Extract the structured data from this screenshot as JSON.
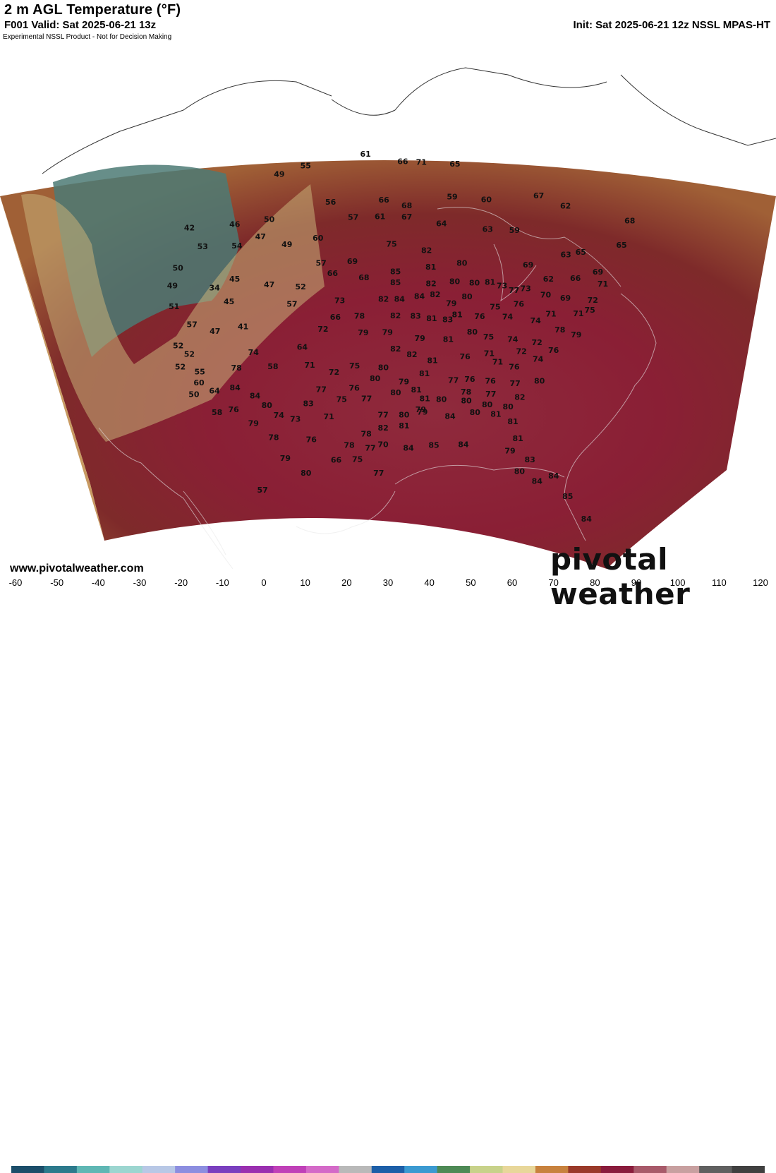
{
  "header": {
    "title": "2 m AGL Temperature (°F)",
    "valid": "F001 Valid: Sat 2025-06-21 13z",
    "init": "Init: Sat 2025-06-21 12z NSSL MPAS-HT",
    "disclaimer": "Experimental NSSL Product - Not for Decision Making"
  },
  "footer": {
    "website": "www.pivotalweather.com",
    "logo": "pivotal weather"
  },
  "colorbar": {
    "ticks": [
      "-60",
      "-50",
      "-40",
      "-30",
      "-20",
      "-10",
      "0",
      "10",
      "20",
      "30",
      "40",
      "50",
      "60",
      "70",
      "80",
      "90",
      "100",
      "110",
      "120"
    ],
    "colors": [
      "#1c4e6a",
      "#2c7a8c",
      "#5fb7b4",
      "#9cd6d0",
      "#b8c8e6",
      "#8c8ee0",
      "#7a3fbf",
      "#9a2fb0",
      "#c040b8",
      "#d46ac8",
      "#b9b9b9",
      "#1d5fa8",
      "#3b9ad1",
      "#4e8a55",
      "#c8d28a",
      "#e8d79a",
      "#c8823e",
      "#9a3a2a",
      "#8a1c3c",
      "#a85a6a",
      "#c8a0a0",
      "#606060",
      "#404040"
    ]
  },
  "stations": [
    {
      "v": "61",
      "lon": -100.0,
      "lat": 53.2
    },
    {
      "v": "66",
      "lon": -95.0,
      "lat": 52.5
    },
    {
      "v": "71",
      "lon": -92.5,
      "lat": 52.5
    },
    {
      "v": "65",
      "lon": -88.0,
      "lat": 52.5
    },
    {
      "v": "55",
      "lon": -108.0,
      "lat": 52.5
    },
    {
      "v": "49",
      "lon": -111.5,
      "lat": 52.0
    },
    {
      "v": "67",
      "lon": -77.0,
      "lat": 50.5
    },
    {
      "v": "62",
      "lon": -73.5,
      "lat": 50.0
    },
    {
      "v": "68",
      "lon": -65.0,
      "lat": 50.0
    },
    {
      "v": "42",
      "lon": -123.0,
      "lat": 48.5
    },
    {
      "v": "46",
      "lon": -117.0,
      "lat": 48.0
    },
    {
      "v": "50",
      "lon": -112.5,
      "lat": 48.0
    },
    {
      "v": "56",
      "lon": -104.5,
      "lat": 49.0
    },
    {
      "v": "66",
      "lon": -97.5,
      "lat": 49.0
    },
    {
      "v": "68",
      "lon": -94.5,
      "lat": 48.5
    },
    {
      "v": "59",
      "lon": -88.5,
      "lat": 49.5
    },
    {
      "v": "60",
      "lon": -84.0,
      "lat": 49.5
    },
    {
      "v": "57",
      "lon": -101.5,
      "lat": 47.5
    },
    {
      "v": "61",
      "lon": -98.0,
      "lat": 47.5
    },
    {
      "v": "67",
      "lon": -94.5,
      "lat": 47.5
    },
    {
      "v": "64",
      "lon": -90.0,
      "lat": 47.0
    },
    {
      "v": "63",
      "lon": -84.0,
      "lat": 46.8
    },
    {
      "v": "59",
      "lon": -80.5,
      "lat": 47.0
    },
    {
      "v": "65",
      "lon": -66.5,
      "lat": 47.5
    },
    {
      "v": "53",
      "lon": -121.0,
      "lat": 46.5
    },
    {
      "v": "54",
      "lon": -116.5,
      "lat": 46.0
    },
    {
      "v": "47",
      "lon": -113.5,
      "lat": 46.5
    },
    {
      "v": "49",
      "lon": -110.0,
      "lat": 45.5
    },
    {
      "v": "60",
      "lon": -106.0,
      "lat": 45.8
    },
    {
      "v": "75",
      "lon": -96.5,
      "lat": 45.0
    },
    {
      "v": "82",
      "lon": -92.0,
      "lat": 44.5
    },
    {
      "v": "63",
      "lon": -74.0,
      "lat": 45.5
    },
    {
      "v": "65",
      "lon": -72.0,
      "lat": 46.0
    },
    {
      "v": "50",
      "lon": -124.0,
      "lat": 45.0
    },
    {
      "v": "49",
      "lon": -124.5,
      "lat": 43.5
    },
    {
      "v": "34",
      "lon": -119.0,
      "lat": 42.5
    },
    {
      "v": "45",
      "lon": -116.5,
      "lat": 43.0
    },
    {
      "v": "57",
      "lon": -105.5,
      "lat": 43.5
    },
    {
      "v": "69",
      "lon": -101.5,
      "lat": 43.5
    },
    {
      "v": "85",
      "lon": -96.0,
      "lat": 42.5
    },
    {
      "v": "81",
      "lon": -91.5,
      "lat": 43.0
    },
    {
      "v": "80",
      "lon": -87.5,
      "lat": 43.5
    },
    {
      "v": "69",
      "lon": -79.0,
      "lat": 44.0
    },
    {
      "v": "62",
      "lon": -76.5,
      "lat": 43.0
    },
    {
      "v": "66",
      "lon": -73.0,
      "lat": 43.5
    },
    {
      "v": "69",
      "lon": -70.0,
      "lat": 44.5
    },
    {
      "v": "71",
      "lon": -69.5,
      "lat": 43.5
    },
    {
      "v": "51",
      "lon": -124.0,
      "lat": 41.5
    },
    {
      "v": "45",
      "lon": -117.0,
      "lat": 41.0
    },
    {
      "v": "47",
      "lon": -112.0,
      "lat": 42.0
    },
    {
      "v": "52",
      "lon": -108.0,
      "lat": 41.5
    },
    {
      "v": "66",
      "lon": -104.0,
      "lat": 42.5
    },
    {
      "v": "68",
      "lon": -100.0,
      "lat": 42.0
    },
    {
      "v": "85",
      "lon": -96.0,
      "lat": 41.5
    },
    {
      "v": "82",
      "lon": -91.5,
      "lat": 41.5
    },
    {
      "v": "80",
      "lon": -88.5,
      "lat": 41.8
    },
    {
      "v": "80",
      "lon": -86.0,
      "lat": 41.8
    },
    {
      "v": "81",
      "lon": -84.0,
      "lat": 42.0
    },
    {
      "v": "73",
      "lon": -82.5,
      "lat": 41.8
    },
    {
      "v": "77",
      "lon": -81.0,
      "lat": 41.5
    },
    {
      "v": "73",
      "lon": -79.5,
      "lat": 41.8
    },
    {
      "v": "70",
      "lon": -77.0,
      "lat": 41.5
    },
    {
      "v": "69",
      "lon": -74.5,
      "lat": 41.5
    },
    {
      "v": "72",
      "lon": -71.0,
      "lat": 41.8
    },
    {
      "v": "57",
      "lon": -121.5,
      "lat": 39.5
    },
    {
      "v": "47",
      "lon": -118.5,
      "lat": 38.5
    },
    {
      "v": "41",
      "lon": -115.0,
      "lat": 38.5
    },
    {
      "v": "57",
      "lon": -109.0,
      "lat": 40.0
    },
    {
      "v": "73",
      "lon": -103.0,
      "lat": 40.0
    },
    {
      "v": "82",
      "lon": -97.5,
      "lat": 40.0
    },
    {
      "v": "84",
      "lon": -95.5,
      "lat": 40.0
    },
    {
      "v": "84",
      "lon": -93.0,
      "lat": 40.3
    },
    {
      "v": "82",
      "lon": -91.0,
      "lat": 40.5
    },
    {
      "v": "79",
      "lon": -89.0,
      "lat": 39.8
    },
    {
      "v": "80",
      "lon": -87.0,
      "lat": 40.5
    },
    {
      "v": "75",
      "lon": -83.5,
      "lat": 39.8
    },
    {
      "v": "76",
      "lon": -80.5,
      "lat": 40.3
    },
    {
      "v": "71",
      "lon": -76.5,
      "lat": 39.8
    },
    {
      "v": "71",
      "lon": -73.0,
      "lat": 40.3
    },
    {
      "v": "75",
      "lon": -71.5,
      "lat": 40.8
    },
    {
      "v": "52",
      "lon": -123.0,
      "lat": 37.8
    },
    {
      "v": "72",
      "lon": -105.0,
      "lat": 37.5
    },
    {
      "v": "66",
      "lon": -103.5,
      "lat": 38.5
    },
    {
      "v": "78",
      "lon": -100.5,
      "lat": 38.5
    },
    {
      "v": "82",
      "lon": -96.0,
      "lat": 38.5
    },
    {
      "v": "83",
      "lon": -93.5,
      "lat": 38.5
    },
    {
      "v": "81",
      "lon": -91.5,
      "lat": 38.3
    },
    {
      "v": "83",
      "lon": -89.5,
      "lat": 38.3
    },
    {
      "v": "81",
      "lon": -88.3,
      "lat": 38.8
    },
    {
      "v": "76",
      "lon": -85.5,
      "lat": 38.8
    },
    {
      "v": "74",
      "lon": -82.0,
      "lat": 39.0
    },
    {
      "v": "74",
      "lon": -78.5,
      "lat": 39.0
    },
    {
      "v": "78",
      "lon": -75.5,
      "lat": 38.5
    },
    {
      "v": "79",
      "lon": -73.5,
      "lat": 38.3
    },
    {
      "v": "52",
      "lon": -121.5,
      "lat": 36.8
    },
    {
      "v": "52",
      "lon": -122.5,
      "lat": 35.8
    },
    {
      "v": "74",
      "lon": -113.5,
      "lat": 36.0
    },
    {
      "v": "79",
      "lon": -100.0,
      "lat": 37.0
    },
    {
      "v": "79",
      "lon": -97.0,
      "lat": 37.0
    },
    {
      "v": "79",
      "lon": -93.0,
      "lat": 36.5
    },
    {
      "v": "81",
      "lon": -89.5,
      "lat": 36.5
    },
    {
      "v": "80",
      "lon": -86.5,
      "lat": 37.3
    },
    {
      "v": "75",
      "lon": -84.5,
      "lat": 37.0
    },
    {
      "v": "74",
      "lon": -81.5,
      "lat": 37.0
    },
    {
      "v": "72",
      "lon": -78.5,
      "lat": 37.0
    },
    {
      "v": "76",
      "lon": -76.5,
      "lat": 36.5
    },
    {
      "v": "55",
      "lon": -120.0,
      "lat": 35.0
    },
    {
      "v": "78",
      "lon": -115.5,
      "lat": 34.8
    },
    {
      "v": "64",
      "lon": -107.5,
      "lat": 36.0
    },
    {
      "v": "82",
      "lon": -96.0,
      "lat": 35.5
    },
    {
      "v": "82",
      "lon": -94.0,
      "lat": 35.0
    },
    {
      "v": "81",
      "lon": -91.5,
      "lat": 34.5
    },
    {
      "v": "76",
      "lon": -87.5,
      "lat": 35.0
    },
    {
      "v": "71",
      "lon": -84.5,
      "lat": 35.5
    },
    {
      "v": "71",
      "lon": -83.5,
      "lat": 34.8
    },
    {
      "v": "76",
      "lon": -81.5,
      "lat": 34.5
    },
    {
      "v": "74",
      "lon": -78.5,
      "lat": 35.5
    },
    {
      "v": "72",
      "lon": -80.5,
      "lat": 36.0
    },
    {
      "v": "60",
      "lon": -120.0,
      "lat": 34.0
    },
    {
      "v": "50",
      "lon": -120.5,
      "lat": 33.0
    },
    {
      "v": "58",
      "lon": -111.0,
      "lat": 34.5
    },
    {
      "v": "71",
      "lon": -106.5,
      "lat": 34.3
    },
    {
      "v": "75",
      "lon": -101.0,
      "lat": 34.0
    },
    {
      "v": "80",
      "lon": -97.5,
      "lat": 33.8
    },
    {
      "v": "81",
      "lon": -92.5,
      "lat": 33.3
    },
    {
      "v": "77",
      "lon": -89.0,
      "lat": 32.8
    },
    {
      "v": "76",
      "lon": -87.0,
      "lat": 33.0
    },
    {
      "v": "76",
      "lon": -84.5,
      "lat": 33.0
    },
    {
      "v": "77",
      "lon": -81.5,
      "lat": 33.0
    },
    {
      "v": "80",
      "lon": -78.5,
      "lat": 33.5
    },
    {
      "v": "64",
      "lon": -118.0,
      "lat": 33.0
    },
    {
      "v": "84",
      "lon": -115.5,
      "lat": 33.0
    },
    {
      "v": "72",
      "lon": -103.5,
      "lat": 33.5
    },
    {
      "v": "80",
      "lon": -98.5,
      "lat": 32.8
    },
    {
      "v": "79",
      "lon": -95.0,
      "lat": 32.5
    },
    {
      "v": "81",
      "lon": -93.5,
      "lat": 31.8
    },
    {
      "v": "78",
      "lon": -87.5,
      "lat": 31.8
    },
    {
      "v": "77",
      "lon": -84.5,
      "lat": 31.8
    },
    {
      "v": "82",
      "lon": -81.0,
      "lat": 31.8
    },
    {
      "v": "84",
      "lon": -113.0,
      "lat": 32.0
    },
    {
      "v": "77",
      "lon": -105.0,
      "lat": 32.0
    },
    {
      "v": "76",
      "lon": -101.0,
      "lat": 32.0
    },
    {
      "v": "80",
      "lon": -96.0,
      "lat": 31.5
    },
    {
      "v": "81",
      "lon": -92.5,
      "lat": 31.0
    },
    {
      "v": "80",
      "lon": -90.5,
      "lat": 31.0
    },
    {
      "v": "80",
      "lon": -87.5,
      "lat": 31.0
    },
    {
      "v": "80",
      "lon": -85.0,
      "lat": 30.8
    },
    {
      "v": "80",
      "lon": -82.5,
      "lat": 30.8
    },
    {
      "v": "58",
      "lon": -117.5,
      "lat": 31.0
    },
    {
      "v": "76",
      "lon": -115.5,
      "lat": 31.0
    },
    {
      "v": "80",
      "lon": -111.5,
      "lat": 31.0
    },
    {
      "v": "83",
      "lon": -106.5,
      "lat": 30.8
    },
    {
      "v": "75",
      "lon": -102.5,
      "lat": 31.0
    },
    {
      "v": "77",
      "lon": -99.5,
      "lat": 31.0
    },
    {
      "v": "79",
      "lon": -93.0,
      "lat": 30.0
    },
    {
      "v": "74",
      "lon": -110.0,
      "lat": 30.0
    },
    {
      "v": "79",
      "lon": -113.0,
      "lat": 29.5
    },
    {
      "v": "73",
      "lon": -108.0,
      "lat": 29.5
    },
    {
      "v": "71",
      "lon": -104.0,
      "lat": 29.5
    },
    {
      "v": "77",
      "lon": -97.5,
      "lat": 29.5
    },
    {
      "v": "80",
      "lon": -95.0,
      "lat": 29.5
    },
    {
      "v": "79",
      "lon": -92.8,
      "lat": 29.8
    },
    {
      "v": "84",
      "lon": -89.5,
      "lat": 29.5
    },
    {
      "v": "80",
      "lon": -86.5,
      "lat": 30.0
    },
    {
      "v": "81",
      "lon": -84.0,
      "lat": 30.0
    },
    {
      "v": "81",
      "lon": -82.0,
      "lat": 29.5
    },
    {
      "v": "82",
      "lon": -97.5,
      "lat": 28.3
    },
    {
      "v": "81",
      "lon": -95.0,
      "lat": 28.5
    },
    {
      "v": "78",
      "lon": -99.5,
      "lat": 27.8
    },
    {
      "v": "78",
      "lon": -110.5,
      "lat": 28.0
    },
    {
      "v": "76",
      "lon": -106.0,
      "lat": 27.5
    },
    {
      "v": "81",
      "lon": -81.5,
      "lat": 28.0
    },
    {
      "v": "78",
      "lon": -101.5,
      "lat": 26.8
    },
    {
      "v": "77",
      "lon": -99.0,
      "lat": 26.5
    },
    {
      "v": "79",
      "lon": -109.0,
      "lat": 26.0
    },
    {
      "v": "70",
      "lon": -97.5,
      "lat": 26.8
    },
    {
      "v": "84",
      "lon": -94.5,
      "lat": 26.5
    },
    {
      "v": "85",
      "lon": -91.5,
      "lat": 26.8
    },
    {
      "v": "84",
      "lon": -88.0,
      "lat": 27.0
    },
    {
      "v": "79",
      "lon": -82.5,
      "lat": 26.8
    },
    {
      "v": "83",
      "lon": -80.2,
      "lat": 26.2
    },
    {
      "v": "66",
      "lon": -103.0,
      "lat": 25.5
    },
    {
      "v": "75",
      "lon": -100.5,
      "lat": 25.5
    },
    {
      "v": "80",
      "lon": -81.5,
      "lat": 25.0
    },
    {
      "v": "84",
      "lon": -77.5,
      "lat": 25.0
    },
    {
      "v": "84",
      "lon": -79.5,
      "lat": 24.3
    },
    {
      "v": "77",
      "lon": -98.0,
      "lat": 24.2
    },
    {
      "v": "80",
      "lon": -106.5,
      "lat": 24.5
    },
    {
      "v": "85",
      "lon": -76.0,
      "lat": 23.3
    },
    {
      "v": "57",
      "lon": -111.5,
      "lat": 23.3
    },
    {
      "v": "84",
      "lon": -74.0,
      "lat": 21.5
    }
  ]
}
